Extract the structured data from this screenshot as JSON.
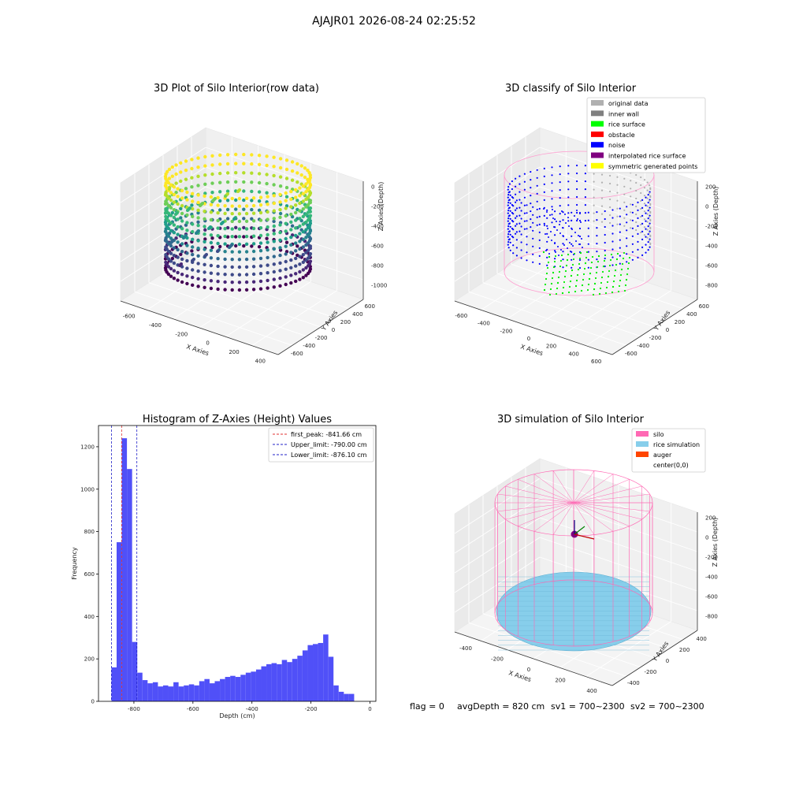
{
  "figure_title": "AJAJR01 2026-08-24 02:25:52",
  "footer": {
    "flag": "flag = 0",
    "avg_depth": "avgDepth = 820 cm",
    "sv1": "sv1 = 700~2300",
    "sv2": "sv2 = 700~2300"
  },
  "colors": {
    "hist_bar": "#5050f8",
    "first_peak_line": "#e03030",
    "limit_line": "#2020c8",
    "silo_wire": "#ff69b4",
    "rice_sim": "#87ceeb",
    "noise": "#0000ff",
    "rice_surface": "#00ff00",
    "original": "#b0b0b0"
  },
  "chart_data": [
    {
      "type": "scatter",
      "dim": "3d",
      "title": "3D Plot of Silo Interior(row data)",
      "xlabel": "X Axies",
      "ylabel": "Y Axies",
      "zlabel": "Z Axies (Depth)",
      "x_ticks": [
        "-600",
        "-400",
        "-200",
        "0",
        "200",
        "400"
      ],
      "y_ticks": [
        "-600",
        "-400",
        "-200",
        "0",
        "200",
        "400",
        "600"
      ],
      "z_ticks": [
        "0",
        "-200",
        "-400",
        "-600",
        "-800",
        "-1000"
      ],
      "colormap": "viridis"
    },
    {
      "type": "scatter",
      "dim": "3d",
      "title": "3D classify of Silo Interior",
      "xlabel": "X Axies",
      "ylabel": "Y Axies",
      "zlabel": "Z Axies (Depth)",
      "x_ticks": [
        "-600",
        "-400",
        "-200",
        "0",
        "200",
        "400",
        "600"
      ],
      "y_ticks": [
        "-600",
        "-400",
        "-200",
        "0",
        "200",
        "400",
        "600"
      ],
      "z_ticks": [
        "200",
        "0",
        "-200",
        "-400",
        "-600",
        "-800"
      ],
      "legend": {
        "placement": "top-right",
        "entries": [
          {
            "label": "original data",
            "color": "#b0b0b0"
          },
          {
            "label": "inner wall",
            "color": "#808080"
          },
          {
            "label": "rice surface",
            "color": "#00ff00"
          },
          {
            "label": "obstacle",
            "color": "#ff0000"
          },
          {
            "label": "noise",
            "color": "#0000ff"
          },
          {
            "label": "interpolated rice surface",
            "color": "#800080"
          },
          {
            "label": "symmetric generated points",
            "color": "#ffff00"
          }
        ]
      }
    },
    {
      "type": "bar",
      "title": "Histogram of Z-Axies (Height) Values",
      "xlabel": "Depth (cm)",
      "ylabel": "Frequency",
      "xlim": [
        -920,
        20
      ],
      "ylim": [
        0,
        1300
      ],
      "x_ticks": [
        -800,
        -600,
        -400,
        -200,
        0
      ],
      "y_ticks": [
        0,
        200,
        400,
        600,
        800,
        1000,
        1200
      ],
      "bin_width": 17.5,
      "bin_start": -876.1,
      "values": [
        160,
        750,
        1240,
        1095,
        280,
        135,
        100,
        85,
        90,
        70,
        75,
        70,
        90,
        70,
        75,
        80,
        75,
        95,
        105,
        85,
        95,
        105,
        115,
        120,
        115,
        125,
        135,
        140,
        150,
        165,
        175,
        180,
        175,
        195,
        185,
        200,
        215,
        240,
        265,
        270,
        275,
        315,
        210,
        75,
        45,
        35,
        35
      ],
      "vlines": [
        {
          "label": "first_peak: -841.66 cm",
          "x": -841.66,
          "style": "dashed",
          "color": "#e03030"
        },
        {
          "label": "Upper_limit: -790.00 cm",
          "x": -790.0,
          "style": "dashed",
          "color": "#2020c8"
        },
        {
          "label": "Lower_limit: -876.10 cm",
          "x": -876.1,
          "style": "dashed",
          "color": "#2020c8"
        }
      ],
      "grid": false,
      "legend_placement": "top-right"
    },
    {
      "type": "scatter",
      "dim": "3d",
      "title": "3D simulation of Silo Interior",
      "xlabel": "X Axies",
      "ylabel": "Y Axies",
      "zlabel": "Z Axies (Depth)",
      "x_ticks": [
        "-400",
        "-200",
        "0",
        "200",
        "400"
      ],
      "y_ticks": [
        "-400",
        "-200",
        "0",
        "200",
        "400"
      ],
      "z_ticks": [
        "200",
        "0",
        "-200",
        "-400",
        "-600",
        "-800"
      ],
      "legend": {
        "placement": "top-right",
        "entries": [
          {
            "label": "silo",
            "color": "#ff69b4"
          },
          {
            "label": "rice simulation",
            "color": "#87ceeb"
          },
          {
            "label": "auger",
            "color": "#ff4500"
          },
          {
            "label": "center(0,0)",
            "color": ""
          }
        ]
      }
    }
  ]
}
